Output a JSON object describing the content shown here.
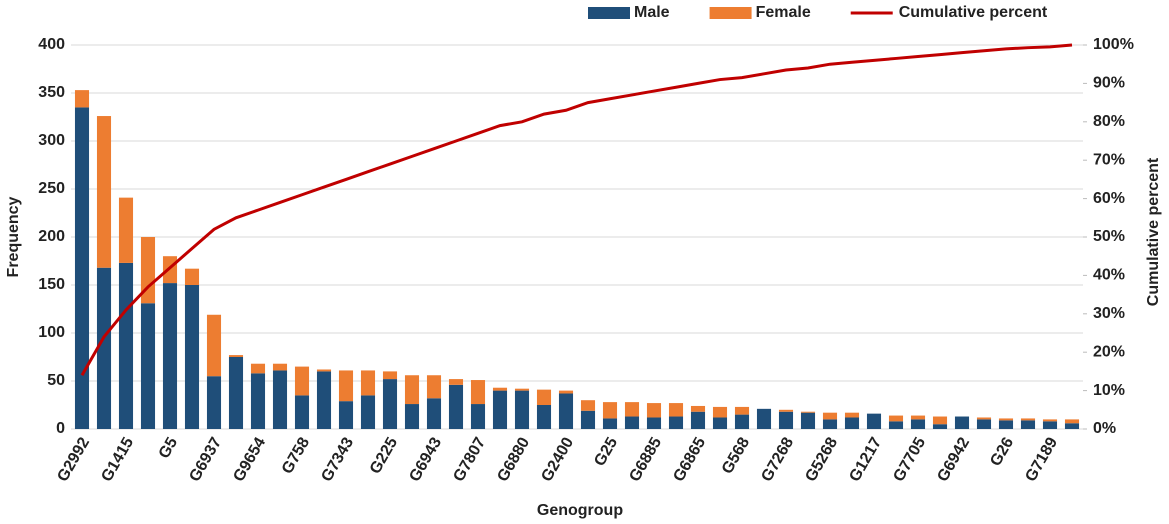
{
  "chart_data": {
    "type": "pareto",
    "xlabel": "Genogroup",
    "ylabel": "Frequency",
    "y2label": "Cumulative percent",
    "categories": [
      "G2992",
      null,
      "G1415",
      null,
      "G5",
      null,
      "G6937",
      null,
      "G9654",
      null,
      "G758",
      null,
      "G7343",
      null,
      "G225",
      null,
      "G6943",
      null,
      "G7807",
      null,
      "G6880",
      null,
      "G2400",
      null,
      "G25",
      null,
      "G6885",
      null,
      "G6865",
      null,
      "G568",
      null,
      "G7268",
      null,
      "G5268",
      null,
      "G1217",
      null,
      "G7705",
      null,
      "G6942",
      null,
      "G26",
      null,
      "G7189",
      null
    ],
    "series": [
      {
        "name": "Male",
        "color": "#1f4e79",
        "values": [
          335,
          168,
          173,
          131,
          152,
          150,
          55,
          75,
          58,
          61,
          35,
          60,
          29,
          35,
          52,
          26,
          32,
          46,
          26,
          40,
          40,
          25,
          37,
          19,
          11,
          13,
          12,
          13,
          18,
          12,
          15,
          21,
          18,
          17,
          10,
          12,
          16,
          8,
          10,
          5,
          13,
          10,
          9,
          9,
          8,
          6
        ]
      },
      {
        "name": "Female",
        "color": "#ed7d31",
        "values": [
          18,
          158,
          68,
          69,
          28,
          17,
          64,
          2,
          10,
          7,
          30,
          2,
          32,
          26,
          8,
          30,
          24,
          6,
          25,
          3,
          2,
          16,
          3,
          11,
          17,
          15,
          15,
          14,
          6,
          11,
          8,
          0,
          2,
          1,
          7,
          5,
          0,
          6,
          4,
          8,
          0,
          2,
          2,
          2,
          2,
          4
        ]
      },
      {
        "name": "Cumulative percent",
        "color": "#c00000",
        "axis": "y2",
        "values": [
          14,
          24,
          31,
          37,
          42,
          47,
          52,
          55,
          57,
          59,
          61,
          63,
          65,
          67,
          69,
          71,
          73,
          75,
          77,
          79,
          80,
          82,
          83,
          85,
          86,
          87,
          88,
          89,
          90,
          91,
          91.5,
          92.5,
          93.5,
          94,
          95,
          95.5,
          96,
          96.5,
          97,
          97.5,
          98,
          98.5,
          99,
          99.3,
          99.5,
          100
        ]
      }
    ],
    "ylim": [
      0,
      400
    ],
    "yticks": [
      0,
      50,
      100,
      150,
      200,
      250,
      300,
      350,
      400
    ],
    "y2lim": [
      0,
      100
    ],
    "y2ticks": [
      {
        "value": 0,
        "label": "0%"
      },
      {
        "value": 10,
        "label": "10%"
      },
      {
        "value": 20,
        "label": "20%"
      },
      {
        "value": 30,
        "label": "30%"
      },
      {
        "value": 40,
        "label": "40%"
      },
      {
        "value": 50,
        "label": "50%"
      },
      {
        "value": 60,
        "label": "60%"
      },
      {
        "value": 70,
        "label": "70%"
      },
      {
        "value": 80,
        "label": "80%"
      },
      {
        "value": 90,
        "label": "90%"
      },
      {
        "value": 100,
        "label": "100%"
      }
    ],
    "grid": true,
    "legend": "top"
  }
}
